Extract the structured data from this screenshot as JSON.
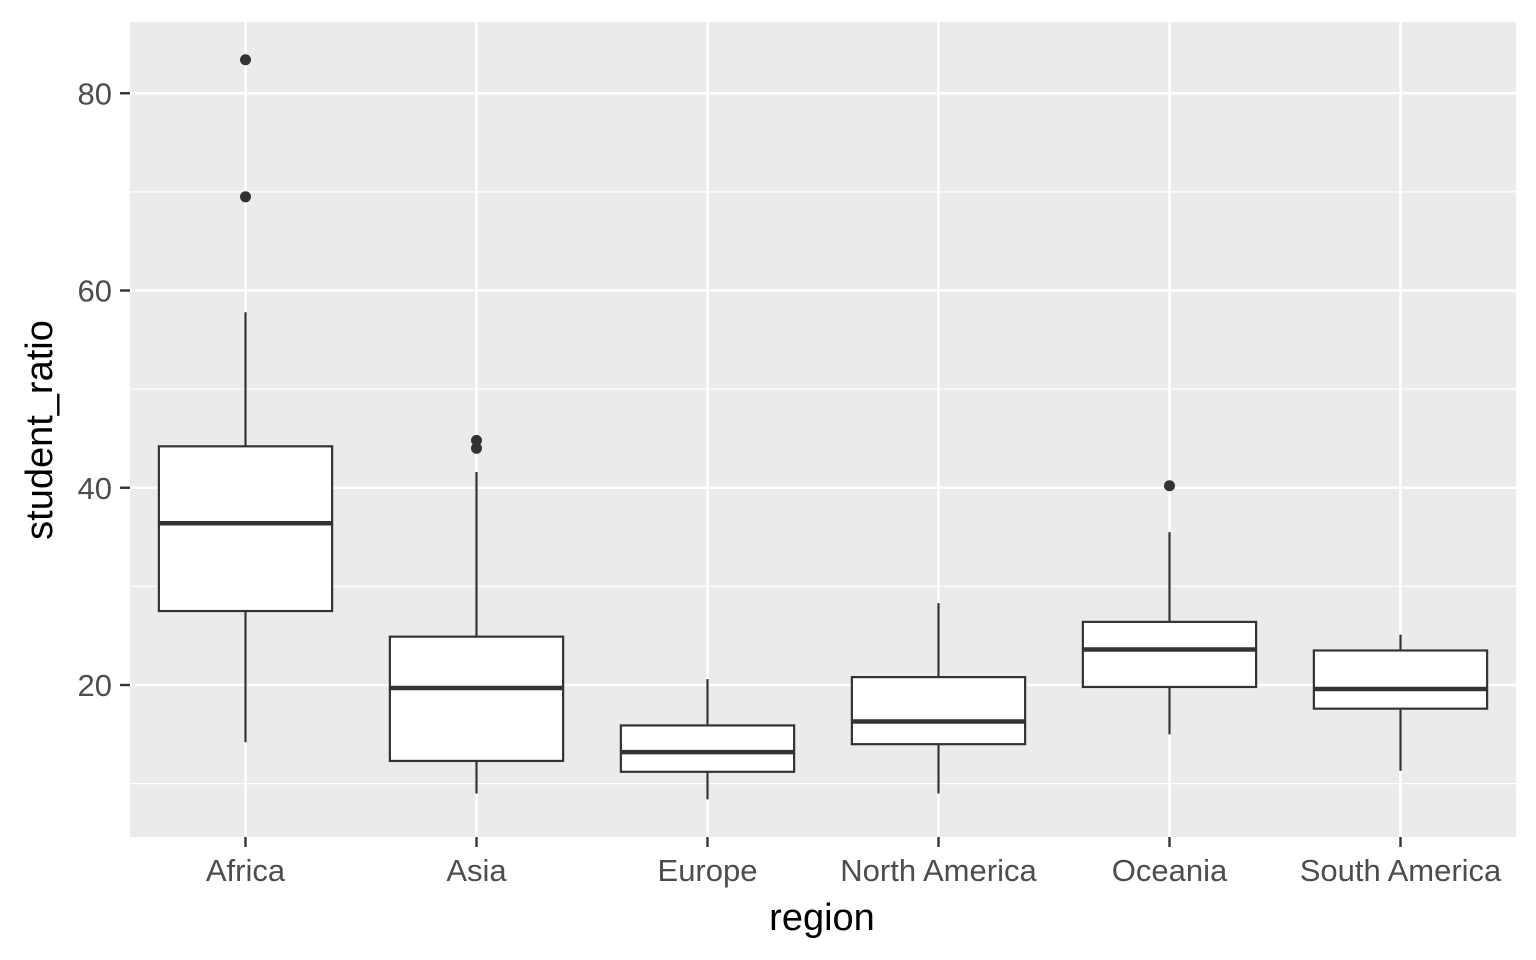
{
  "chart_data": {
    "type": "boxplot",
    "xlabel": "region",
    "ylabel": "student_ratio",
    "ylim": [
      5,
      87
    ],
    "y_ticks": [
      20,
      40,
      60,
      80
    ],
    "y_tick_labels": [
      "20",
      "40",
      "60",
      "80"
    ],
    "grid": true,
    "colors": {
      "panel_background": "#ebebeb",
      "grid_major": "#ffffff",
      "box_fill": "#ffffff",
      "box_stroke": "#333333",
      "tick_label": "#4d4d4d",
      "axis_title": "#000000"
    },
    "categories": [
      "Africa",
      "Asia",
      "Europe",
      "North America",
      "Oceania",
      "South America"
    ],
    "boxes": [
      {
        "category": "Africa",
        "whisker_low": 14.2,
        "q1": 27.5,
        "median": 36.4,
        "q3": 44.2,
        "whisker_high": 57.8,
        "outliers": [
          83.4,
          69.5
        ]
      },
      {
        "category": "Asia",
        "whisker_low": 9.0,
        "q1": 12.3,
        "median": 19.7,
        "q3": 24.9,
        "whisker_high": 41.6,
        "outliers": [
          44.8,
          44.0
        ]
      },
      {
        "category": "Europe",
        "whisker_low": 8.4,
        "q1": 11.2,
        "median": 13.2,
        "q3": 15.9,
        "whisker_high": 20.6,
        "outliers": []
      },
      {
        "category": "North America",
        "whisker_low": 9.0,
        "q1": 14.0,
        "median": 16.3,
        "q3": 20.8,
        "whisker_high": 28.3,
        "outliers": []
      },
      {
        "category": "Oceania",
        "whisker_low": 15.0,
        "q1": 19.8,
        "median": 23.6,
        "q3": 26.4,
        "whisker_high": 35.5,
        "outliers": [
          40.2
        ]
      },
      {
        "category": "South America",
        "whisker_low": 11.3,
        "q1": 17.6,
        "median": 19.6,
        "q3": 23.5,
        "whisker_high": 25.1,
        "outliers": []
      }
    ]
  }
}
